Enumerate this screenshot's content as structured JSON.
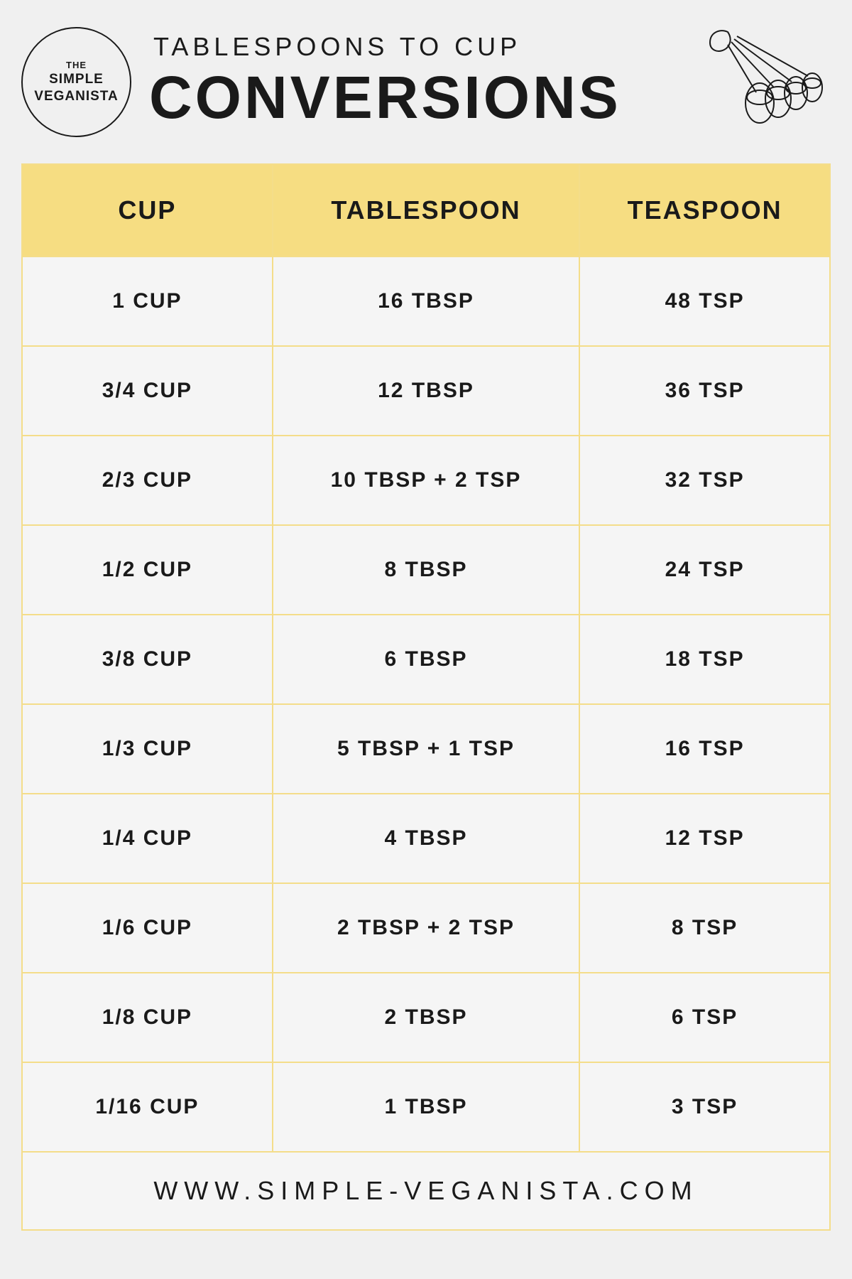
{
  "logo": {
    "line1": "THE",
    "line2": "SIMPLE",
    "line3": "VEGANISTA"
  },
  "header": {
    "subtitle": "TABLESPOONS TO CUP",
    "title": "CONVERSIONS"
  },
  "table": {
    "columns": [
      "CUP",
      "TABLESPOON",
      "TEASPOON"
    ],
    "rows": [
      [
        "1 CUP",
        "16 TBSP",
        "48 TSP"
      ],
      [
        "3/4 CUP",
        "12 TBSP",
        "36 TSP"
      ],
      [
        "2/3 CUP",
        "10 TBSP + 2 TSP",
        "32 TSP"
      ],
      [
        "1/2 CUP",
        "8 TBSP",
        "24 TSP"
      ],
      [
        "3/8 CUP",
        "6 TBSP",
        "18 TSP"
      ],
      [
        "1/3 CUP",
        "5 TBSP + 1 TSP",
        "16 TSP"
      ],
      [
        "1/4 CUP",
        "4 TBSP",
        "12 TSP"
      ],
      [
        "1/6 CUP",
        "2 TBSP + 2 TSP",
        "8 TSP"
      ],
      [
        "1/8 CUP",
        "2 TBSP",
        "6 TSP"
      ],
      [
        "1/16 CUP",
        "1 TBSP",
        "3 TSP"
      ]
    ]
  },
  "footer": {
    "url": "WWW.SIMPLE-VEGANISTA.COM"
  },
  "style": {
    "page_bg": "#f0f0f0",
    "header_bg": "#f6dd82",
    "border_color": "#f4dd8a",
    "cell_bg": "#f5f5f5",
    "text_color": "#1a1a1a",
    "header_fontsize": 36,
    "cell_fontsize": 30,
    "title_fontsize": 84,
    "subtitle_fontsize": 36,
    "footer_fontsize": 36
  }
}
